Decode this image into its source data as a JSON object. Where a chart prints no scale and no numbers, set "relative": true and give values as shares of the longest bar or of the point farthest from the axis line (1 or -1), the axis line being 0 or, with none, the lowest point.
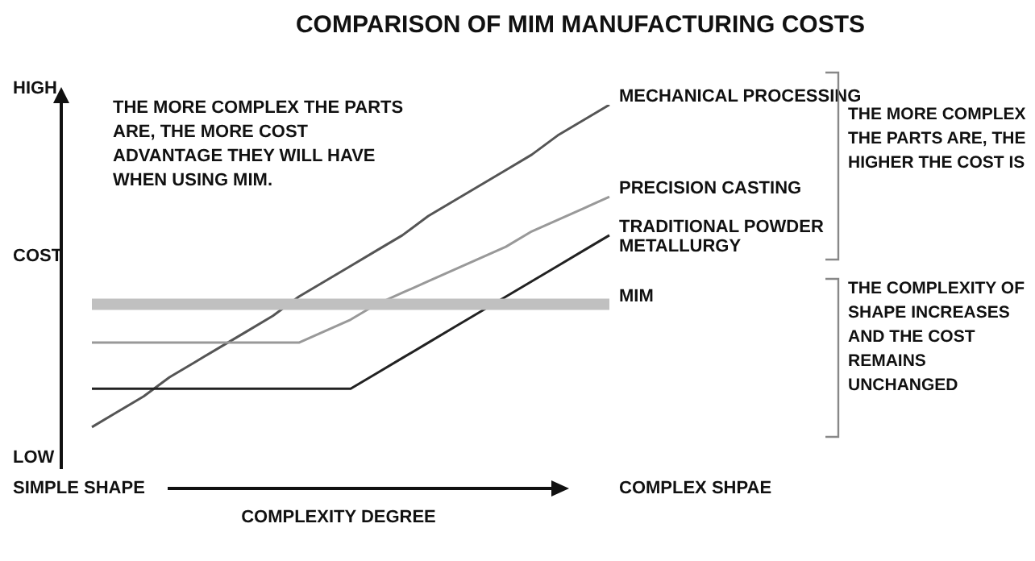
{
  "chart_data": {
    "type": "line",
    "relative": true,
    "title": "COMPARISON OF MIM MANUFACTURING COSTS",
    "xlabel": "COMPLEXITY DEGREE",
    "ylabel": "COST",
    "categories": [
      null,
      null,
      null,
      null,
      null,
      null,
      null,
      null,
      null,
      null,
      null,
      null,
      null,
      null,
      null,
      null,
      null,
      null,
      null,
      null,
      null
    ],
    "series": [
      {
        "name": "MECHANICAL PROCESSING",
        "color": "#555555",
        "values": [
          0.16,
          0.2,
          0.24,
          0.29,
          0.33,
          0.37,
          0.41,
          0.45,
          0.5,
          0.54,
          0.58,
          0.62,
          0.66,
          0.71,
          0.75,
          0.79,
          0.83,
          0.87,
          0.92,
          0.96,
          1.0
        ]
      },
      {
        "name": "PRECISION CASTING",
        "color": "#999999",
        "values": [
          0.38,
          0.38,
          0.38,
          0.38,
          0.38,
          0.38,
          0.38,
          0.38,
          0.38,
          0.41,
          0.44,
          0.48,
          0.51,
          0.54,
          0.57,
          0.6,
          0.63,
          0.67,
          0.7,
          0.73,
          0.76
        ]
      },
      {
        "name": "TRADITIONAL POWDER METALLURGY",
        "color": "#222222",
        "values": [
          0.26,
          0.26,
          0.26,
          0.26,
          0.26,
          0.26,
          0.26,
          0.26,
          0.26,
          0.26,
          0.26,
          0.3,
          0.34,
          0.38,
          0.42,
          0.46,
          0.5,
          0.54,
          0.58,
          0.62,
          0.66
        ]
      },
      {
        "name": "MIM",
        "color": "#c0c0c0",
        "values": [
          0.48,
          0.48,
          0.48,
          0.48,
          0.48,
          0.48,
          0.48,
          0.48,
          0.48,
          0.48,
          0.48,
          0.48,
          0.48,
          0.48,
          0.48,
          0.48,
          0.48,
          0.48,
          0.48,
          0.48,
          0.48
        ]
      }
    ],
    "annotations": [
      "THE MORE COMPLEX THE PARTS ARE, THE MORE COST ADVANTAGE THEY WILL HAVE WHEN USING MIM.",
      "THE MORE COMPLEX THE PARTS ARE, THE HIGHER THE COST IS",
      "THE COMPLEXITY OF SHAPE INCREASES AND THE COST REMAINS UNCHANGED",
      "HIGH",
      "LOW",
      "SIMPLE SHAPE",
      "COMPLEX SHPAE"
    ],
    "legend": false,
    "marker": "none",
    "line_style": "solid"
  }
}
